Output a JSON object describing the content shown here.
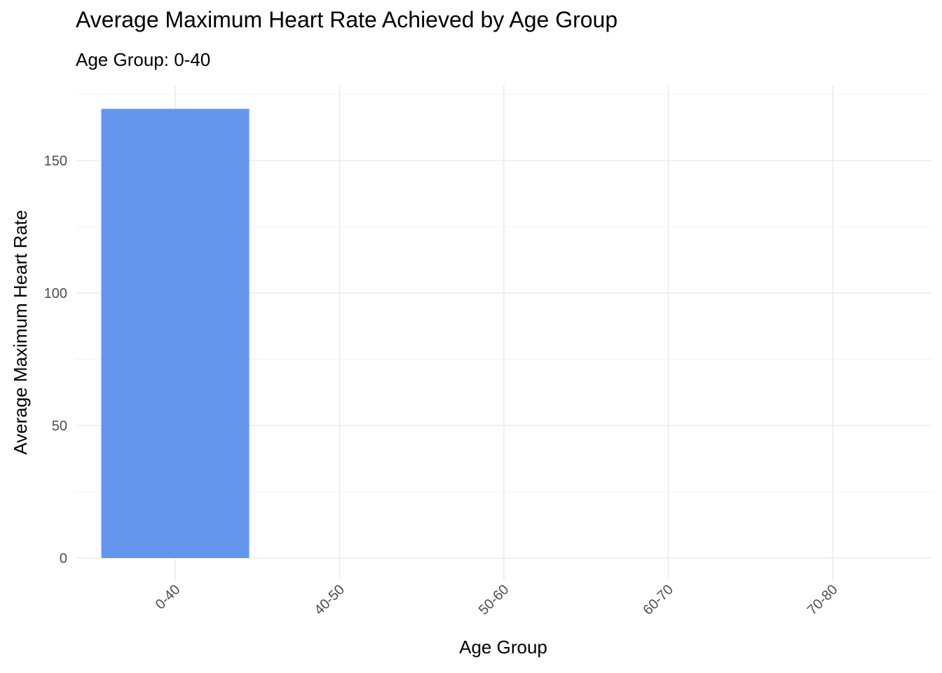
{
  "chart_data": {
    "type": "bar",
    "title": "Average Maximum Heart Rate Achieved by Age Group",
    "subtitle": "Age Group: 0-40",
    "xlabel": "Age Group",
    "ylabel": "Average Maximum Heart Rate",
    "categories": [
      "0-40",
      "40-50",
      "50-60",
      "60-70",
      "70-80"
    ],
    "values": [
      169.5,
      null,
      null,
      null,
      null
    ],
    "ylim": [
      0,
      175
    ],
    "yticks": [
      0,
      50,
      100,
      150
    ],
    "ytick_labels": [
      "0",
      "50",
      "100",
      "150"
    ],
    "grid": true,
    "legend": "none",
    "bar_color": "#6495ED",
    "grid_color": "#ebebeb"
  }
}
